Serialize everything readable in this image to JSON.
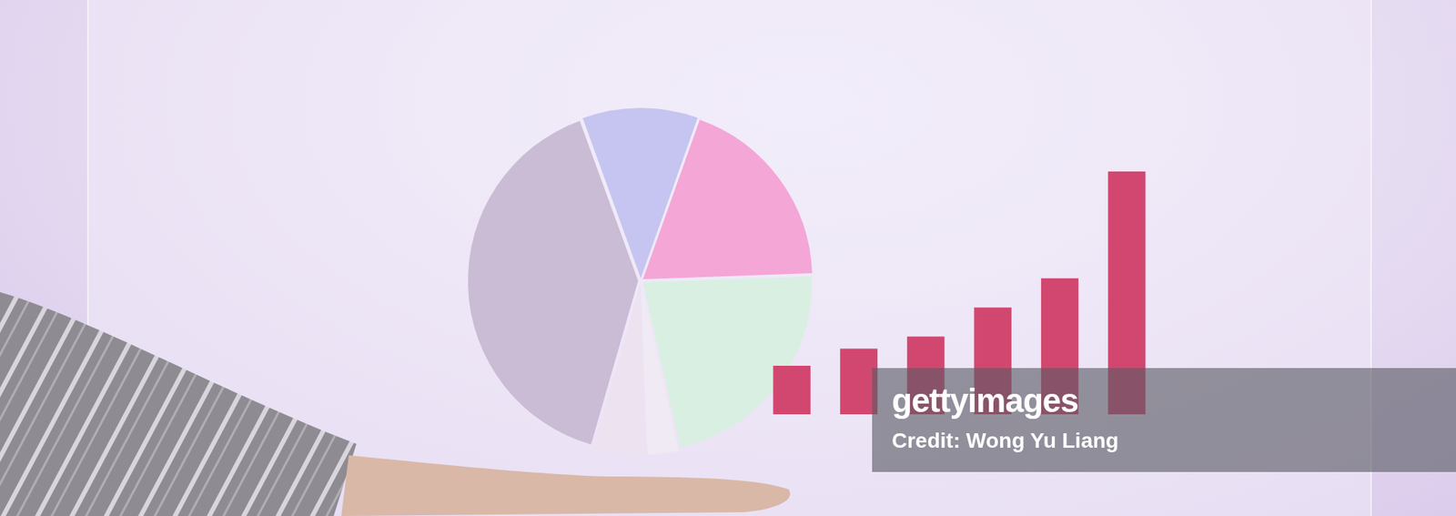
{
  "chart_data": [
    {
      "type": "pie",
      "categories": [
        null,
        null,
        null,
        null,
        null,
        null
      ],
      "values": [
        11,
        19,
        22,
        3,
        5,
        40
      ],
      "colors": [
        "#c6c4f0",
        "#f4a6d6",
        "#d9efe2",
        "#f0eaf4",
        "#ece2f0",
        "#cbbcd6"
      ],
      "legend": false
    },
    {
      "type": "bar",
      "categories": [
        null,
        null,
        null,
        null,
        null,
        null
      ],
      "values": [
        2,
        2.7,
        3.2,
        4.4,
        5.6,
        10
      ],
      "color": "#d2476f",
      "ylim": [
        0,
        10
      ],
      "tick_labels": false,
      "grid": false,
      "legend": false
    }
  ],
  "watermark": {
    "brand": "gettyimages",
    "credit": "Credit: Wong Yu Liang"
  }
}
